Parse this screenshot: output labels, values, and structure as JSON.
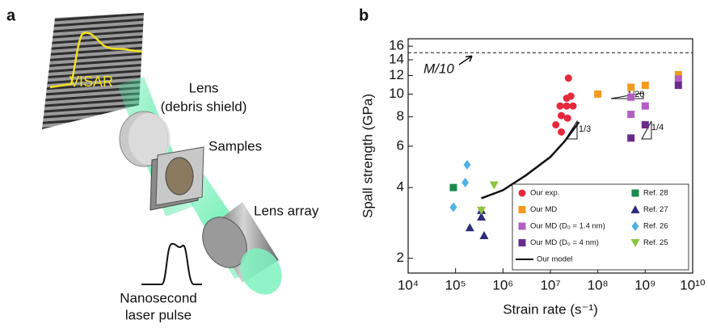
{
  "panel_labels": [
    "a",
    "b"
  ],
  "diagram": {
    "image_label": "VISAR",
    "lens": "Lens",
    "lens_note": "(debris shield)",
    "samples": "Samples",
    "lens_array": "Lens array",
    "pulse_line1": "Nanosecond",
    "pulse_line2": "laser pulse"
  },
  "chart_data": {
    "type": "scatter",
    "xlabel": "Strain rate (s⁻¹)",
    "ylabel": "Spall strength (GPa)",
    "xscale": "log",
    "yscale": "log",
    "xlim": [
      10000,
      10000000000
    ],
    "ylim": [
      1.73,
      17.2
    ],
    "xticks": [
      {
        "value": 10000,
        "label": "10⁴"
      },
      {
        "value": 100000,
        "label": "10⁵"
      },
      {
        "value": 1000000,
        "label": "10⁶"
      },
      {
        "value": 10000000,
        "label": "10⁷"
      },
      {
        "value": 100000000,
        "label": "10⁸"
      },
      {
        "value": 1000000000,
        "label": "10⁹"
      },
      {
        "value": 10000000000,
        "label": "10¹⁰"
      }
    ],
    "yticks": [
      2,
      4,
      6,
      8,
      10,
      12,
      14,
      16
    ],
    "reference_line": {
      "value": 15,
      "label": "M/10"
    },
    "annotations": [
      "1/3",
      "1/4",
      "1/20"
    ],
    "legend": "lower right",
    "series": [
      {
        "name": "Our exp.",
        "color": "#e8283c",
        "marker": "circle",
        "x": [
          24000000,
          22000000,
          27000000,
          16000000,
          22000000,
          30000000,
          17000000,
          23000000,
          13000000,
          17000000
        ],
        "y": [
          11.7,
          9.6,
          9.8,
          8.9,
          8.9,
          8.9,
          8.1,
          7.9,
          7.4,
          6.9
        ]
      },
      {
        "name": "Our MD",
        "color": "#f39a1e",
        "marker": "square",
        "x": [
          100000000,
          500000000,
          1000000000,
          5000000000
        ],
        "y": [
          10,
          10.7,
          10.9,
          12.1
        ]
      },
      {
        "name": "Our MD (D₀ = 1.4 nm)",
        "color": "#b35fc2",
        "marker": "square",
        "x": [
          500000000,
          1000000000,
          500000000,
          5000000000
        ],
        "y": [
          9.7,
          8.9,
          8.2,
          11.6
        ]
      },
      {
        "name": "Our MD (D₀ = 4 nm)",
        "color": "#6a2c8c",
        "marker": "square",
        "x": [
          500000000,
          1000000000,
          5000000000
        ],
        "y": [
          6.5,
          7.4,
          10.9
        ]
      },
      {
        "name": "Our model",
        "color": "#111111",
        "marker": "line",
        "x": [
          350000,
          1000000,
          3000000,
          10000000,
          20000000,
          40000000
        ],
        "y": [
          3.6,
          3.9,
          4.5,
          5.4,
          6.3,
          7.6
        ]
      },
      {
        "name": "Ref. 28",
        "color": "#1a8a4c",
        "marker": "square",
        "x": [
          90000
        ],
        "y": [
          4.0
        ]
      },
      {
        "name": "Ref. 27",
        "color": "#2c2b7c",
        "marker": "triangle-up",
        "x": [
          350000,
          350000,
          200000,
          400000
        ],
        "y": [
          3.2,
          3.0,
          2.7,
          2.5
        ]
      },
      {
        "name": "Ref. 26",
        "color": "#4eb2e2",
        "marker": "diamond",
        "x": [
          175000,
          160000,
          90000
        ],
        "y": [
          5.0,
          4.2,
          3.3
        ]
      },
      {
        "name": "Ref. 25",
        "color": "#8cc63f",
        "marker": "triangle-down",
        "x": [
          650000,
          350000
        ],
        "y": [
          4.1,
          3.2
        ]
      }
    ]
  }
}
